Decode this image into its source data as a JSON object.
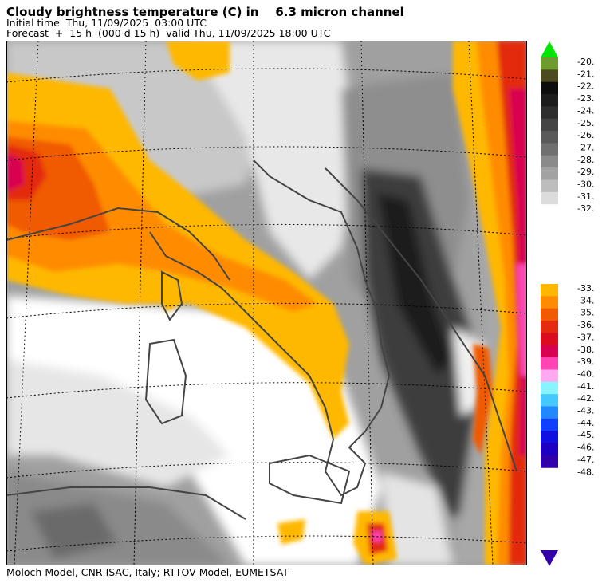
{
  "header": {
    "title": "Cloudy brightness temperature (C) in    6.3 micron channel",
    "initial_time": "Initial time  Thu, 11/09/2025  03:00 UTC",
    "forecast": "Forecast  +  15 h  (000 d 15 h)  valid Thu, 11/09/2025 18:00 UTC"
  },
  "footer": {
    "credit": "Moloch Model, CNR-ISAC, Italy; RTTOV Model, EUMETSAT"
  },
  "legend": {
    "colors": {
      "arrow_top": "#00e600",
      "arrow_bottom": "#3300aa"
    },
    "gray_scale": [
      {
        "label": "-20.",
        "color": "#6e9b2e"
      },
      {
        "label": "-21.",
        "color": "#4d4a20"
      },
      {
        "label": "-22.",
        "color": "#0d0d0d"
      },
      {
        "label": "-23.",
        "color": "#1c1c1c"
      },
      {
        "label": "-24.",
        "color": "#2e2e2e"
      },
      {
        "label": "-25.",
        "color": "#444444"
      },
      {
        "label": "-26.",
        "color": "#5a5a5a"
      },
      {
        "label": "-27.",
        "color": "#707070"
      },
      {
        "label": "-28.",
        "color": "#8a8a8a"
      },
      {
        "label": "-29.",
        "color": "#a2a2a2"
      },
      {
        "label": "-30.",
        "color": "#bdbdbd"
      },
      {
        "label": "-31.",
        "color": "#dcdcdc"
      },
      {
        "label": "-32.",
        "color": "#ffffff"
      }
    ],
    "color_scale": [
      {
        "label": "-33.",
        "color": "#ffb800"
      },
      {
        "label": "-34.",
        "color": "#ff8c00"
      },
      {
        "label": "-35.",
        "color": "#f05a00"
      },
      {
        "label": "-36.",
        "color": "#e32b10"
      },
      {
        "label": "-37.",
        "color": "#dc0c20"
      },
      {
        "label": "-38.",
        "color": "#d80050"
      },
      {
        "label": "-39.",
        "color": "#ff44b4"
      },
      {
        "label": "-40.",
        "color": "#ffaaf0"
      },
      {
        "label": "-41.",
        "color": "#88f4ff"
      },
      {
        "label": "-42.",
        "color": "#44c8ff"
      },
      {
        "label": "-43.",
        "color": "#2288ff"
      },
      {
        "label": "-44.",
        "color": "#1040ff"
      },
      {
        "label": "-45.",
        "color": "#1010e0"
      },
      {
        "label": "-46.",
        "color": "#2000c0"
      },
      {
        "label": "-47.",
        "color": "#3000a8"
      },
      {
        "label": "-48.",
        "color": ""
      }
    ]
  }
}
